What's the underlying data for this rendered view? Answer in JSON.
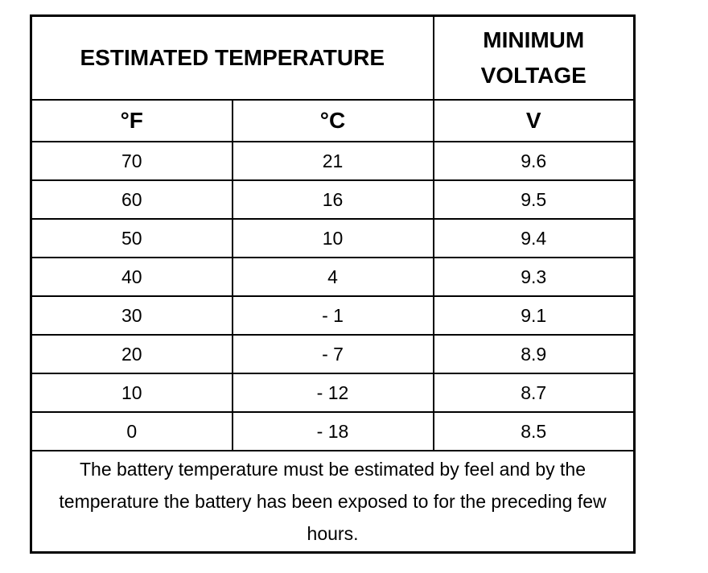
{
  "table": {
    "header": [
      "ESTIMATED TEMPERATURE",
      "MINIMUM VOLTAGE"
    ],
    "units": [
      "°F",
      "°C",
      "V"
    ],
    "rows": [
      [
        70,
        21,
        9.6
      ],
      [
        60,
        16,
        9.5
      ],
      [
        50,
        10,
        9.4
      ],
      [
        40,
        4,
        9.3
      ],
      [
        30,
        "- 1",
        9.1
      ],
      [
        20,
        "- 7",
        8.9
      ],
      [
        10,
        "- 12",
        8.7
      ],
      [
        0,
        "- 18",
        8.5
      ]
    ],
    "note": "The battery temperature must be estimated by feel and by the temperature the battery has been exposed to for the preceding few hours."
  }
}
